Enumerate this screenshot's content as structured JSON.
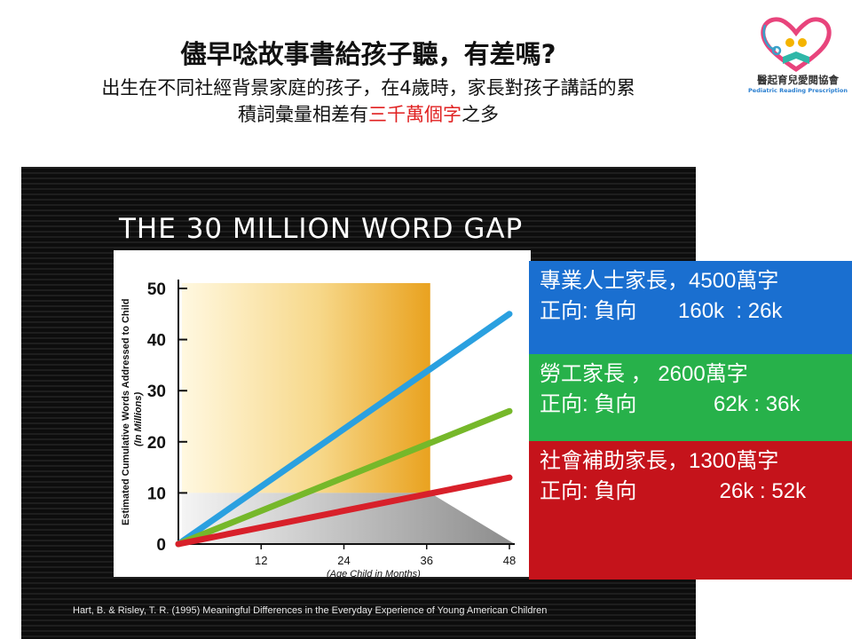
{
  "header": {
    "title": "儘早唸故事書給孩子聽，有差嗎?",
    "subtitle_line1": "出生在不同社經背景家庭的孩子，在4歲時，家長對孩子講話的累",
    "subtitle_line2_pre": "積詞彙量相差有",
    "subtitle_line2_highlight": "三千萬個字",
    "subtitle_line2_post": "之多",
    "highlight_color": "#e02020"
  },
  "logo": {
    "name": "醫起育兒愛閱協會",
    "english": "Pediatric Reading Prescription",
    "icon": "heart-stethoscope-book-icon"
  },
  "chart_data": {
    "type": "line",
    "title": "THE 30 MILLION WORD GAP",
    "ylabel": "Estimated Cumulative Words Addressed to Child",
    "ylabel_sub": "(In Millions)",
    "xlabel": "(Age Child in Months)",
    "x": [
      0,
      48
    ],
    "xticks": [
      12,
      24,
      36,
      48
    ],
    "yticks": [
      0,
      10,
      20,
      30,
      40,
      50
    ],
    "xlim": [
      0,
      48
    ],
    "ylim": [
      0,
      50
    ],
    "series": [
      {
        "color": "#2aa0e0",
        "values": [
          0,
          45
        ]
      },
      {
        "color": "#76b82a",
        "values": [
          0,
          26
        ]
      },
      {
        "color": "#d8202a",
        "values": [
          0,
          13
        ]
      }
    ],
    "citation": "Hart, B. & Risley, T. R. (1995) Meaningful Differences in the Everyday Experience of Young American Children"
  },
  "info_boxes": [
    {
      "line1": "專業人士家長，4500萬字",
      "line2": "正向: 負向       160k  : 26k",
      "color": "#1a6fd0"
    },
    {
      "line1": "勞工家長  ，       2600萬字",
      "line2": "正向: 負向             62k : 36k",
      "color": "#27b14a"
    },
    {
      "line1": "社會補助家長，1300萬字",
      "line2": "正向: 負向              26k : 52k",
      "color": "#c5131b"
    }
  ]
}
